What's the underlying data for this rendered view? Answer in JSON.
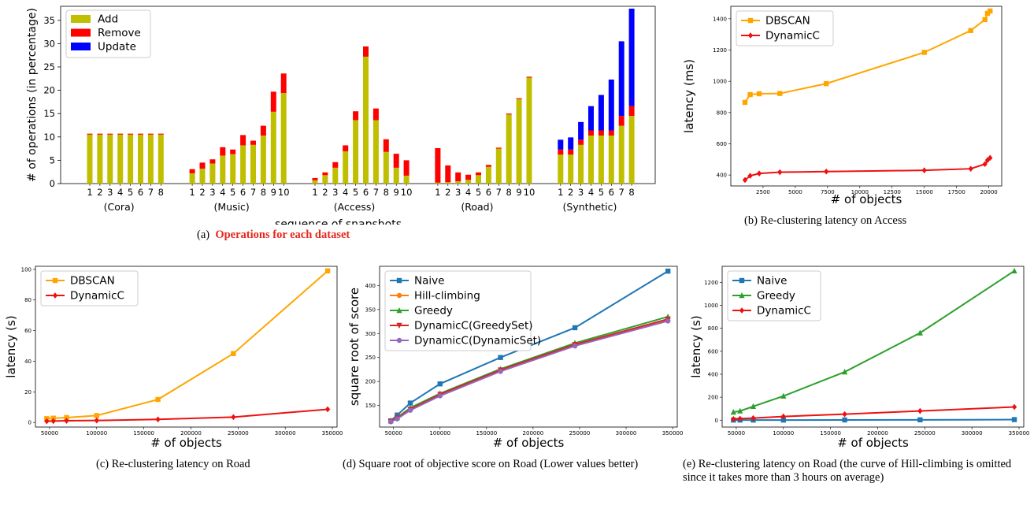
{
  "captions": {
    "a_prefix": "(a)",
    "a_text": "Operations for each dataset",
    "b": "(b)  Re-clustering latency on Access",
    "c": "(c)  Re-clustering latency on Road",
    "d": "(d)  Square root of objective score on Road (Lower values better)",
    "e": "(e)  Re-clustering latency on Road (the curve of Hill-climbing is omitted since it takes more than 3 hours on average)"
  },
  "chart_data": [
    {
      "id": "a",
      "type": "bar",
      "stacked": true,
      "ylabel": "# of operations (in percentage)",
      "xlabel": "sequence of snapshots",
      "ylim": [
        0,
        38
      ],
      "yticks": [
        0,
        5,
        10,
        15,
        20,
        25,
        30,
        35
      ],
      "legend": [
        "Add",
        "Remove",
        "Update"
      ],
      "legend_position": "top-left",
      "colors": {
        "Add": "#bfbf00",
        "Remove": "#ff0000",
        "Update": "#0000ff"
      },
      "groups": [
        {
          "name": "(Cora)",
          "labels": [
            "1",
            "2",
            "3",
            "4",
            "5",
            "6",
            "7",
            "8"
          ],
          "add": [
            10.5,
            10.5,
            10.5,
            10.5,
            10.5,
            10.5,
            10.5,
            10.5
          ],
          "remove": [
            0.2,
            0.2,
            0.2,
            0.2,
            0.2,
            0.2,
            0.2,
            0.2
          ],
          "update": [
            0,
            0,
            0,
            0,
            0,
            0,
            0,
            0
          ]
        },
        {
          "name": "(Music)",
          "labels": [
            "1",
            "2",
            "3",
            "4",
            "5",
            "6",
            "7",
            "8",
            "9",
            "10"
          ],
          "add": [
            2.2,
            3.2,
            4.3,
            6.0,
            6.3,
            8.2,
            8.3,
            10.3,
            15.4,
            19.4
          ],
          "remove": [
            0.9,
            1.3,
            0.9,
            1.8,
            1.0,
            2.2,
            0.9,
            2.1,
            4.3,
            4.2
          ],
          "update": [
            0,
            0,
            0,
            0,
            0,
            0,
            0,
            0,
            0,
            0
          ]
        },
        {
          "name": "(Access)",
          "labels": [
            "1",
            "2",
            "3",
            "4",
            "5",
            "6",
            "7",
            "8",
            "9",
            "10"
          ],
          "add": [
            0.7,
            1.8,
            3.4,
            6.9,
            13.6,
            27.2,
            13.6,
            6.8,
            3.4,
            1.7
          ],
          "remove": [
            0.5,
            0.6,
            1.2,
            1.3,
            1.9,
            2.2,
            2.5,
            2.7,
            3.0,
            3.3
          ],
          "update": [
            0,
            0,
            0,
            0,
            0,
            0,
            0,
            0,
            0,
            0
          ]
        },
        {
          "name": "(Road)",
          "labels": [
            "1",
            "2",
            "3",
            "4",
            "5",
            "6",
            "7",
            "8",
            "9",
            "10"
          ],
          "add": [
            0.2,
            0.3,
            0.5,
            0.8,
            1.8,
            3.6,
            7.5,
            14.8,
            18.1,
            22.7
          ],
          "remove": [
            7.4,
            3.6,
            1.9,
            1.1,
            0.6,
            0.4,
            0.2,
            0.2,
            0.2,
            0.2
          ],
          "update": [
            0,
            0,
            0,
            0,
            0,
            0,
            0,
            0,
            0,
            0
          ]
        },
        {
          "name": "(Synthetic)",
          "labels": [
            "1",
            "2",
            "3",
            "4",
            "5",
            "6",
            "7",
            "8"
          ],
          "add": [
            6.2,
            6.2,
            8.3,
            10.3,
            10.3,
            10.3,
            12.4,
            14.5
          ],
          "remove": [
            1.1,
            1.1,
            1.1,
            1.1,
            1.1,
            1.1,
            2.1,
            2.1
          ],
          "update": [
            2.1,
            2.6,
            3.8,
            5.2,
            7.6,
            10.9,
            16.0,
            20.9
          ]
        }
      ]
    },
    {
      "id": "b",
      "type": "line",
      "xlabel": "# of objects",
      "ylabel": "latency (ms)",
      "xlim": [
        0,
        21000
      ],
      "ylim": [
        330,
        1480
      ],
      "xticks": [
        2500,
        5000,
        7500,
        10000,
        12500,
        15000,
        17500,
        20000
      ],
      "yticks": [
        400,
        600,
        800,
        1000,
        1200,
        1400
      ],
      "legend_position": "top-left",
      "series": [
        {
          "name": "DBSCAN",
          "color": "#ffa500",
          "marker": "square",
          "x": [
            1100,
            1500,
            2200,
            3800,
            7400,
            15000,
            18600,
            19700,
            19900,
            20100
          ],
          "y": [
            865,
            915,
            920,
            922,
            985,
            1185,
            1325,
            1395,
            1435,
            1450
          ]
        },
        {
          "name": "DynamicC",
          "color": "#ee1111",
          "marker": "diamond",
          "x": [
            1100,
            1500,
            2200,
            3800,
            7400,
            15000,
            18600,
            19700,
            19900,
            20100
          ],
          "y": [
            368,
            395,
            410,
            418,
            422,
            430,
            440,
            470,
            495,
            510
          ]
        }
      ]
    },
    {
      "id": "c",
      "type": "line",
      "xlabel": "# of objects",
      "ylabel": "latency (s)",
      "xlim": [
        35000,
        355000
      ],
      "ylim": [
        -3,
        102
      ],
      "xticks": [
        50000,
        100000,
        150000,
        200000,
        250000,
        300000,
        350000
      ],
      "yticks": [
        0,
        20,
        40,
        60,
        80,
        100
      ],
      "legend_position": "top-left",
      "series": [
        {
          "name": "DBSCAN",
          "color": "#ffa500",
          "marker": "square",
          "x": [
            47000,
            54000,
            68000,
            100000,
            165000,
            245000,
            345000
          ],
          "y": [
            2.5,
            2.8,
            3.2,
            4.5,
            15,
            45,
            99
          ]
        },
        {
          "name": "DynamicC",
          "color": "#ee1111",
          "marker": "diamond",
          "x": [
            47000,
            54000,
            68000,
            100000,
            165000,
            245000,
            345000
          ],
          "y": [
            0.8,
            0.9,
            1.1,
            1.3,
            2.0,
            3.5,
            8.6
          ]
        }
      ]
    },
    {
      "id": "d",
      "type": "line",
      "xlabel": "# of objects",
      "ylabel": "square root of score",
      "xlim": [
        35000,
        355000
      ],
      "ylim": [
        105,
        440
      ],
      "xticks": [
        50000,
        100000,
        150000,
        200000,
        250000,
        300000,
        350000
      ],
      "yticks": [
        150,
        200,
        250,
        300,
        350,
        400
      ],
      "legend_position": "top-left",
      "series": [
        {
          "name": "Naive",
          "color": "#1f77b4",
          "marker": "square",
          "x": [
            47000,
            54000,
            68000,
            100000,
            165000,
            245000,
            345000
          ],
          "y": [
            118,
            130,
            155,
            195,
            250,
            312,
            430
          ]
        },
        {
          "name": "Hill-climbing",
          "color": "#ff7f0e",
          "marker": "circle",
          "x": [
            47000,
            54000,
            68000,
            100000,
            165000,
            245000,
            345000
          ],
          "y": [
            117,
            123,
            141,
            171,
            222,
            275,
            327
          ]
        },
        {
          "name": "Greedy",
          "color": "#2ca02c",
          "marker": "triangle",
          "x": [
            47000,
            54000,
            68000,
            100000,
            165000,
            245000,
            345000
          ],
          "y": [
            118,
            125,
            145,
            175,
            226,
            280,
            335
          ]
        },
        {
          "name": "DynamicC(GreedySet)",
          "color": "#d62728",
          "marker": "triangle-down",
          "x": [
            47000,
            54000,
            68000,
            100000,
            165000,
            245000,
            345000
          ],
          "y": [
            117,
            124,
            142,
            173,
            224,
            277,
            330
          ]
        },
        {
          "name": "DynamicC(DynamicSet)",
          "color": "#9467bd",
          "marker": "circle",
          "x": [
            47000,
            54000,
            68000,
            100000,
            165000,
            245000,
            345000
          ],
          "y": [
            116,
            122,
            140,
            170,
            221,
            274,
            326
          ]
        }
      ]
    },
    {
      "id": "e",
      "type": "line",
      "xlabel": "# of objects",
      "ylabel": "latency (s)",
      "xlim": [
        35000,
        355000
      ],
      "ylim": [
        -60,
        1340
      ],
      "xticks": [
        50000,
        100000,
        150000,
        200000,
        250000,
        300000,
        350000
      ],
      "yticks": [
        0,
        200,
        400,
        600,
        800,
        1000,
        1200
      ],
      "legend_position": "top-left",
      "series": [
        {
          "name": "Naive",
          "color": "#1f77b4",
          "marker": "square",
          "x": [
            47000,
            54000,
            68000,
            100000,
            165000,
            245000,
            345000
          ],
          "y": [
            1,
            1,
            1,
            1,
            2,
            3,
            5
          ]
        },
        {
          "name": "Greedy",
          "color": "#2ca02c",
          "marker": "triangle",
          "x": [
            47000,
            54000,
            68000,
            100000,
            165000,
            245000,
            345000
          ],
          "y": [
            70,
            80,
            120,
            210,
            420,
            760,
            1300
          ]
        },
        {
          "name": "DynamicC",
          "color": "#ee1111",
          "marker": "diamond",
          "x": [
            47000,
            54000,
            68000,
            100000,
            165000,
            245000,
            345000
          ],
          "y": [
            10,
            13,
            18,
            32,
            52,
            80,
            115
          ]
        }
      ]
    }
  ]
}
